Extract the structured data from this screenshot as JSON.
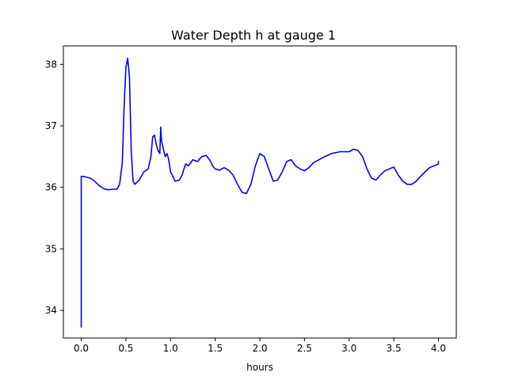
{
  "chart_data": {
    "type": "line",
    "title": "Water Depth h at gauge 1",
    "xlabel": "hours",
    "ylabel": "",
    "xlim": [
      -0.2,
      4.2
    ],
    "ylim": [
      33.55,
      38.3
    ],
    "xticks": [
      0.0,
      0.5,
      1.0,
      1.5,
      2.0,
      2.5,
      3.0,
      3.5,
      4.0
    ],
    "xtick_labels": [
      "0.0",
      "0.5",
      "1.0",
      "1.5",
      "2.0",
      "2.5",
      "3.0",
      "3.5",
      "4.0"
    ],
    "yticks": [
      34,
      35,
      36,
      37,
      38
    ],
    "ytick_labels": [
      "34",
      "35",
      "36",
      "37",
      "38"
    ],
    "grid": false,
    "legend": "none",
    "series": [
      {
        "color": "#0000ff",
        "x": [
          0.0,
          0.0,
          0.0,
          0.05,
          0.1,
          0.15,
          0.2,
          0.25,
          0.3,
          0.35,
          0.4,
          0.43,
          0.46,
          0.48,
          0.5,
          0.52,
          0.54,
          0.56,
          0.58,
          0.6,
          0.62,
          0.65,
          0.7,
          0.75,
          0.78,
          0.8,
          0.82,
          0.84,
          0.86,
          0.88,
          0.89,
          0.9,
          0.92,
          0.94,
          0.96,
          0.98,
          1.0,
          1.02,
          1.05,
          1.1,
          1.13,
          1.15,
          1.17,
          1.2,
          1.25,
          1.3,
          1.35,
          1.4,
          1.45,
          1.47,
          1.5,
          1.55,
          1.6,
          1.65,
          1.7,
          1.75,
          1.8,
          1.85,
          1.9,
          1.95,
          2.0,
          2.05,
          2.1,
          2.15,
          2.2,
          2.25,
          2.3,
          2.35,
          2.4,
          2.45,
          2.5,
          2.55,
          2.6,
          2.7,
          2.8,
          2.9,
          3.0,
          3.05,
          3.1,
          3.15,
          3.2,
          3.25,
          3.3,
          3.35,
          3.4,
          3.45,
          3.5,
          3.55,
          3.6,
          3.65,
          3.7,
          3.75,
          3.8,
          3.85,
          3.9,
          3.95,
          4.0,
          4.0
        ],
        "y": [
          33.72,
          35.2,
          36.18,
          36.17,
          36.15,
          36.1,
          36.03,
          35.98,
          35.96,
          35.97,
          35.97,
          36.05,
          36.4,
          37.3,
          37.95,
          38.1,
          37.8,
          36.6,
          36.1,
          36.05,
          36.08,
          36.12,
          36.25,
          36.3,
          36.5,
          36.82,
          36.85,
          36.7,
          36.6,
          36.55,
          36.98,
          36.75,
          36.62,
          36.5,
          36.55,
          36.45,
          36.25,
          36.2,
          36.1,
          36.12,
          36.2,
          36.3,
          36.38,
          36.35,
          36.45,
          36.42,
          36.5,
          36.52,
          36.42,
          36.35,
          36.3,
          36.28,
          36.32,
          36.28,
          36.2,
          36.05,
          35.92,
          35.9,
          36.05,
          36.35,
          36.55,
          36.5,
          36.3,
          36.1,
          36.12,
          36.25,
          36.42,
          36.45,
          36.35,
          36.3,
          36.27,
          36.32,
          36.4,
          36.48,
          36.55,
          36.58,
          36.58,
          36.62,
          36.6,
          36.5,
          36.3,
          36.15,
          36.12,
          36.2,
          36.27,
          36.3,
          36.33,
          36.2,
          36.1,
          36.05,
          36.05,
          36.1,
          36.18,
          36.25,
          36.32,
          36.35,
          36.38,
          36.43
        ]
      }
    ]
  }
}
